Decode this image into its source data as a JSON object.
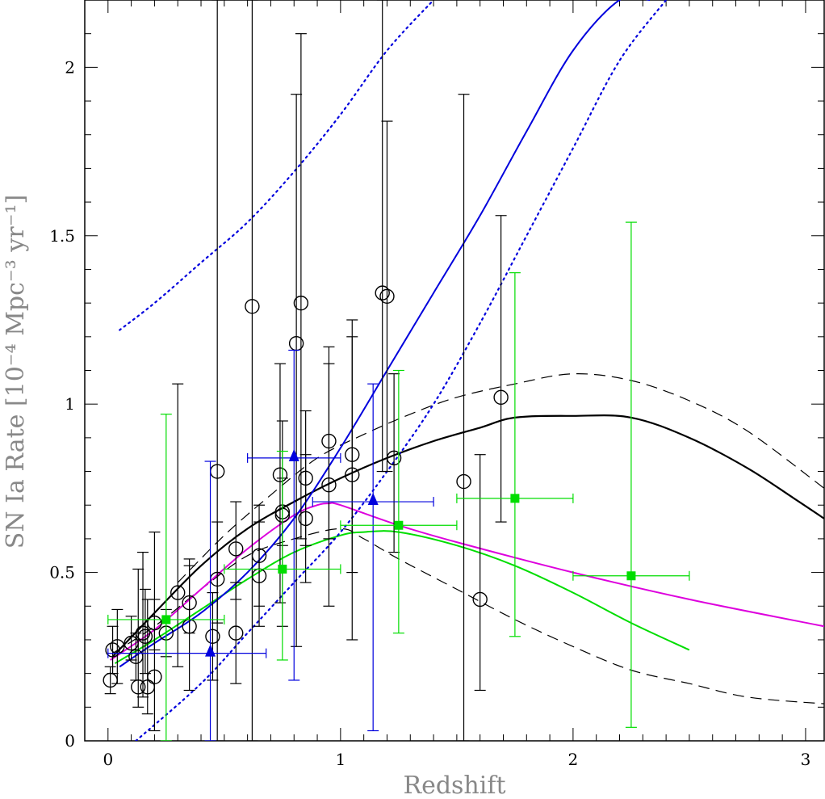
{
  "chart_data": {
    "type": "scatter",
    "xlabel": "Redshift",
    "ylabel": "SN Ia Rate [10⁻⁴ Mpc⁻³ yr⁻¹]",
    "xlim": [
      -0.1,
      3.08
    ],
    "ylim": [
      0,
      2.2
    ],
    "x_ticks": [
      0,
      1,
      2,
      3
    ],
    "y_ticks": [
      0,
      0.5,
      1,
      1.5,
      2
    ],
    "grid": false,
    "series": [
      {
        "kind": "points",
        "marker": "open-circle",
        "color": "#000000",
        "points": [
          {
            "x": 0.01,
            "y": 0.18,
            "ylo": 0.14,
            "yhi": 0.22
          },
          {
            "x": 0.02,
            "y": 0.27,
            "ylo": 0.2,
            "yhi": 0.34
          },
          {
            "x": 0.04,
            "y": 0.28,
            "ylo": 0.17,
            "yhi": 0.39
          },
          {
            "x": 0.1,
            "y": 0.29,
            "ylo": 0.24,
            "yhi": 0.37
          },
          {
            "x": 0.12,
            "y": 0.25,
            "ylo": 0.18,
            "yhi": 0.32
          },
          {
            "x": 0.13,
            "y": 0.16,
            "ylo": 0.1,
            "yhi": 0.51
          },
          {
            "x": 0.15,
            "y": 0.32,
            "ylo": 0.13,
            "yhi": 0.56
          },
          {
            "x": 0.16,
            "y": 0.31,
            "ylo": 0.2,
            "yhi": 0.45
          },
          {
            "x": 0.17,
            "y": 0.16,
            "ylo": 0.08,
            "yhi": 0.42
          },
          {
            "x": 0.2,
            "y": 0.19,
            "ylo": 0.03,
            "yhi": 0.62
          },
          {
            "x": 0.2,
            "y": 0.35,
            "ylo": 0.27,
            "yhi": 0.42
          },
          {
            "x": 0.25,
            "y": 0.32,
            "ylo": 0.25,
            "yhi": 0.39
          },
          {
            "x": 0.3,
            "y": 0.44,
            "ylo": 0.22,
            "yhi": 1.06
          },
          {
            "x": 0.35,
            "y": 0.34,
            "ylo": 0.15,
            "yhi": 0.52
          },
          {
            "x": 0.35,
            "y": 0.41,
            "ylo": 0.32,
            "yhi": 0.54
          },
          {
            "x": 0.45,
            "y": 0.31,
            "ylo": 0.18,
            "yhi": 0.44
          },
          {
            "x": 0.47,
            "y": 0.48,
            "ylo": 0.35,
            "yhi": 0.65
          },
          {
            "x": 0.47,
            "y": 0.8,
            "ylo": 0.0,
            "yhi": 2.2
          },
          {
            "x": 0.55,
            "y": 0.57,
            "ylo": 0.42,
            "yhi": 0.71
          },
          {
            "x": 0.55,
            "y": 0.32,
            "ylo": 0.17,
            "yhi": 0.47
          },
          {
            "x": 0.62,
            "y": 1.29,
            "ylo": 0.0,
            "yhi": 2.2
          },
          {
            "x": 0.65,
            "y": 0.55,
            "ylo": 0.4,
            "yhi": 0.7
          },
          {
            "x": 0.65,
            "y": 0.49,
            "ylo": 0.34,
            "yhi": 0.65
          },
          {
            "x": 0.74,
            "y": 0.79,
            "ylo": 0.41,
            "yhi": 1.12
          },
          {
            "x": 0.75,
            "y": 0.68,
            "ylo": 0.58,
            "yhi": 0.78
          },
          {
            "x": 0.75,
            "y": 0.67,
            "ylo": 0.34,
            "yhi": 0.95
          },
          {
            "x": 0.81,
            "y": 1.18,
            "ylo": 0.28,
            "yhi": 1.92
          },
          {
            "x": 0.83,
            "y": 1.3,
            "ylo": 0.6,
            "yhi": 2.1
          },
          {
            "x": 0.85,
            "y": 0.78,
            "ylo": 0.58,
            "yhi": 0.98
          },
          {
            "x": 0.85,
            "y": 0.66,
            "ylo": 0.47,
            "yhi": 0.85
          },
          {
            "x": 0.95,
            "y": 0.89,
            "ylo": 0.6,
            "yhi": 1.17
          },
          {
            "x": 0.95,
            "y": 0.76,
            "ylo": 0.4,
            "yhi": 1.12
          },
          {
            "x": 1.05,
            "y": 0.85,
            "ylo": 0.5,
            "yhi": 1.2
          },
          {
            "x": 1.05,
            "y": 0.79,
            "ylo": 0.3,
            "yhi": 1.25
          },
          {
            "x": 1.18,
            "y": 1.33,
            "ylo": 0.8,
            "yhi": 2.2
          },
          {
            "x": 1.2,
            "y": 1.32,
            "ylo": 0.8,
            "yhi": 1.84
          },
          {
            "x": 1.23,
            "y": 0.84,
            "ylo": 0.56,
            "yhi": 1.09
          },
          {
            "x": 1.53,
            "y": 0.77,
            "ylo": 0.0,
            "yhi": 1.92
          },
          {
            "x": 1.6,
            "y": 0.42,
            "ylo": 0.15,
            "yhi": 0.85
          },
          {
            "x": 1.69,
            "y": 1.02,
            "ylo": 0.65,
            "yhi": 1.56
          }
        ]
      },
      {
        "kind": "points",
        "marker": "filled-triangle",
        "color": "#0000dd",
        "points": [
          {
            "x": 0.44,
            "y": 0.26,
            "ylo": 0.0,
            "yhi": 0.83,
            "xlo": 0.0,
            "xhi": 0.68
          },
          {
            "x": 0.8,
            "y": 0.84,
            "ylo": 0.18,
            "yhi": 1.16,
            "xlo": 0.6,
            "xhi": 1.0
          },
          {
            "x": 1.14,
            "y": 0.71,
            "ylo": 0.03,
            "yhi": 1.06,
            "xlo": 0.88,
            "xhi": 1.4
          }
        ]
      },
      {
        "kind": "points",
        "marker": "filled-square",
        "color": "#00dd00",
        "points": [
          {
            "x": 0.25,
            "y": 0.36,
            "ylo": 0.0,
            "yhi": 0.97,
            "xlo": 0.0,
            "xhi": 0.5
          },
          {
            "x": 0.75,
            "y": 0.51,
            "ylo": 0.24,
            "yhi": 0.86,
            "xlo": 0.5,
            "xhi": 1.0
          },
          {
            "x": 1.25,
            "y": 0.64,
            "ylo": 0.32,
            "yhi": 1.1,
            "xlo": 1.0,
            "xhi": 1.5
          },
          {
            "x": 1.75,
            "y": 0.72,
            "ylo": 0.31,
            "yhi": 1.39,
            "xlo": 1.5,
            "xhi": 2.0
          },
          {
            "x": 2.25,
            "y": 0.49,
            "ylo": 0.04,
            "yhi": 1.54,
            "xlo": 2.0,
            "xhi": 2.5
          }
        ]
      },
      {
        "kind": "line",
        "color": "#000000",
        "dash": "solid",
        "width": 2.2,
        "x": [
          0.02,
          0.2,
          0.4,
          0.6,
          0.8,
          1.0,
          1.2,
          1.4,
          1.6,
          1.75,
          2.0,
          2.25,
          2.5,
          2.75,
          2.95,
          3.08
        ],
        "y": [
          0.25,
          0.38,
          0.52,
          0.63,
          0.71,
          0.78,
          0.84,
          0.89,
          0.93,
          0.96,
          0.965,
          0.96,
          0.9,
          0.81,
          0.72,
          0.66
        ]
      },
      {
        "kind": "line",
        "color": "#000000",
        "dash": "dashed",
        "width": 1.2,
        "x": [
          0.3,
          0.5,
          0.7,
          0.9,
          1.1,
          1.3,
          1.5,
          1.75,
          2.0,
          2.25,
          2.5,
          2.75,
          3.08
        ],
        "y": [
          0.47,
          0.61,
          0.73,
          0.84,
          0.91,
          0.97,
          1.02,
          1.06,
          1.09,
          1.07,
          1.01,
          0.92,
          0.75
        ]
      },
      {
        "kind": "line",
        "color": "#000000",
        "dash": "dashed",
        "width": 1.2,
        "x": [
          0.02,
          0.2,
          0.4,
          0.6,
          0.8,
          1.0,
          1.1,
          1.25,
          1.5,
          1.75,
          2.0,
          2.25,
          2.5,
          2.75,
          3.08
        ],
        "y": [
          0.26,
          0.34,
          0.45,
          0.55,
          0.6,
          0.63,
          0.6,
          0.54,
          0.45,
          0.36,
          0.28,
          0.21,
          0.17,
          0.13,
          0.11
        ]
      },
      {
        "kind": "line",
        "color": "#dd00dd",
        "dash": "solid",
        "width": 2,
        "x": [
          0.01,
          0.2,
          0.4,
          0.6,
          0.8,
          0.9,
          0.95,
          1.0,
          1.25,
          1.5,
          2.0,
          2.5,
          3.08
        ],
        "y": [
          0.24,
          0.33,
          0.45,
          0.57,
          0.67,
          0.7,
          0.705,
          0.7,
          0.64,
          0.59,
          0.5,
          0.42,
          0.34
        ]
      },
      {
        "kind": "line",
        "color": "#00dd00",
        "dash": "solid",
        "width": 2,
        "x": [
          0.03,
          0.2,
          0.4,
          0.6,
          0.8,
          1.0,
          1.1,
          1.25,
          1.5,
          1.75,
          2.0,
          2.25,
          2.5
        ],
        "y": [
          0.23,
          0.3,
          0.39,
          0.48,
          0.56,
          0.61,
          0.62,
          0.62,
          0.58,
          0.52,
          0.44,
          0.35,
          0.27
        ]
      },
      {
        "kind": "line",
        "color": "#0000dd",
        "dash": "solid",
        "width": 2,
        "x": [
          0.05,
          0.2,
          0.4,
          0.6,
          0.8,
          1.0,
          1.2,
          1.4,
          1.6,
          1.8,
          2.0,
          2.2,
          2.33
        ],
        "y": [
          0.22,
          0.29,
          0.38,
          0.5,
          0.66,
          0.87,
          1.1,
          1.33,
          1.56,
          1.81,
          2.05,
          2.2,
          2.2
        ]
      },
      {
        "kind": "line",
        "color": "#0000dd",
        "dash": "dotted",
        "width": 2.2,
        "x": [
          0.05,
          0.2,
          0.4,
          0.6,
          0.8,
          1.0,
          1.2,
          1.4
        ],
        "y": [
          1.22,
          1.3,
          1.42,
          1.54,
          1.69,
          1.86,
          2.05,
          2.2
        ]
      },
      {
        "kind": "line",
        "color": "#0000dd",
        "dash": "dotted",
        "width": 2.2,
        "x": [
          0.12,
          0.4,
          0.6,
          0.8,
          1.0,
          1.2,
          1.4,
          1.6,
          1.8,
          2.0,
          2.2,
          2.4
        ],
        "y": [
          0.0,
          0.17,
          0.32,
          0.47,
          0.62,
          0.8,
          1.0,
          1.24,
          1.5,
          1.76,
          2.02,
          2.2
        ]
      }
    ]
  }
}
